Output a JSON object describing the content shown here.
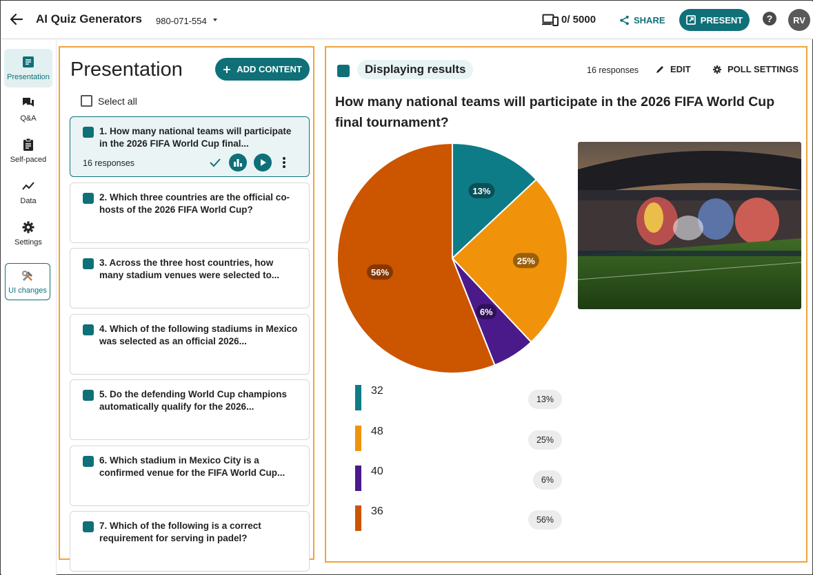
{
  "header": {
    "app_title": "AI Quiz Generators",
    "session_code": "980-071-554",
    "participants": "0/ 5000",
    "share_label": "SHARE",
    "present_label": "PRESENT",
    "help_glyph": "?",
    "avatar_initials": "RV"
  },
  "rail": {
    "items": [
      {
        "label": "Presentation",
        "icon": "presentation-icon",
        "active": true
      },
      {
        "label": "Q&A",
        "icon": "qa-icon"
      },
      {
        "label": "Self-paced",
        "icon": "clipboard-icon"
      },
      {
        "label": "Data",
        "icon": "chart-line-icon"
      },
      {
        "label": "Settings",
        "icon": "gear-icon"
      }
    ],
    "ui_changes_label": "UI changes"
  },
  "list": {
    "title": "Presentation",
    "add_content_label": "ADD CONTENT",
    "select_all_label": "Select all",
    "questions": [
      {
        "text": "1. How many national teams will participate in the 2026 FIFA World Cup final...",
        "responses": "16 responses"
      },
      {
        "text": "2. Which three countries are the official co-hosts of the 2026 FIFA World Cup?"
      },
      {
        "text": "3. Across the three host countries, how many stadium venues were selected to..."
      },
      {
        "text": "4. Which of the following stadiums in Mexico was selected as an official 2026..."
      },
      {
        "text": "5. Do the defending World Cup champions automatically qualify for the 2026..."
      },
      {
        "text": "6. Which stadium in Mexico City is a confirmed venue for the FIFA World Cup..."
      },
      {
        "text": "7. Which of the following is a correct requirement for serving in padel?"
      }
    ]
  },
  "results": {
    "heading": "Displaying results",
    "responses": "16 responses",
    "edit_label": "EDIT",
    "poll_settings_label": "POLL SETTINGS",
    "question": "How many national teams will participate in the 2026 FIFA World Cup final tournament?",
    "options": [
      {
        "label": "32",
        "pct": "13%"
      },
      {
        "label": "48",
        "pct": "25%"
      },
      {
        "label": "40",
        "pct": "6%"
      },
      {
        "label": "36",
        "pct": "56%"
      }
    ]
  },
  "chart_data": {
    "type": "pie",
    "categories": [
      "32",
      "48",
      "40",
      "36"
    ],
    "values": [
      13,
      25,
      6,
      56
    ],
    "colors": [
      "#0e7c86",
      "#f0930b",
      "#4b1a8a",
      "#cc5500"
    ],
    "data_labels": [
      "13%",
      "25%",
      "6%",
      "56%"
    ],
    "start_angle": "12 o'clock, clockwise"
  },
  "colors": {
    "accent": "#0f7078",
    "highlight_border": "#f0a33a"
  }
}
